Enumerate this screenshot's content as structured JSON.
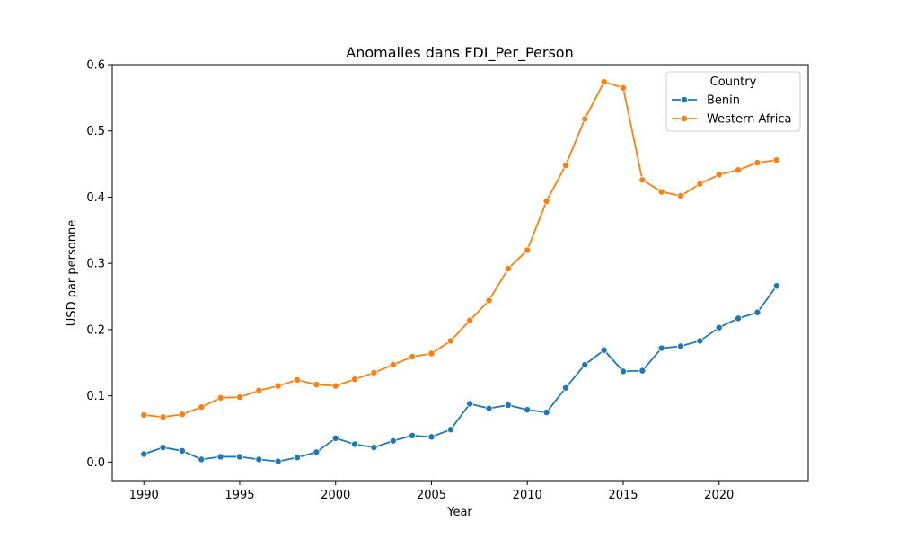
{
  "chart_data": {
    "type": "line",
    "title": "Anomalies dans FDI_Per_Person",
    "xlabel": "Year",
    "ylabel": "USD par personne",
    "xlim": [
      1988.35,
      2024.65
    ],
    "ylim": [
      -0.028,
      0.6
    ],
    "x_ticks": [
      1990,
      1995,
      2000,
      2005,
      2010,
      2015,
      2020
    ],
    "y_ticks": [
      0.0,
      0.1,
      0.2,
      0.3,
      0.4,
      0.5,
      0.6
    ],
    "y_tick_labels": [
      "0.0",
      "0.1",
      "0.2",
      "0.3",
      "0.4",
      "0.5",
      "0.6"
    ],
    "grid": false,
    "legend": {
      "title": "Country",
      "placement": "top-right"
    },
    "x": [
      1990,
      1991,
      1992,
      1993,
      1994,
      1995,
      1996,
      1997,
      1998,
      1999,
      2000,
      2001,
      2002,
      2003,
      2004,
      2005,
      2006,
      2007,
      2008,
      2009,
      2010,
      2011,
      2012,
      2013,
      2014,
      2015,
      2016,
      2017,
      2018,
      2019,
      2020,
      2021,
      2022,
      2023
    ],
    "series": [
      {
        "name": "Benin",
        "color": "#1f77b4",
        "marker": "circle",
        "values": [
          0.012,
          0.022,
          0.017,
          0.004,
          0.008,
          0.008,
          0.004,
          0.001,
          0.007,
          0.015,
          0.036,
          0.027,
          0.022,
          0.032,
          0.04,
          0.038,
          0.049,
          0.088,
          0.081,
          0.086,
          0.079,
          0.075,
          0.112,
          0.147,
          0.169,
          0.137,
          0.138,
          0.172,
          0.175,
          0.183,
          0.203,
          0.217,
          0.226,
          0.266
        ]
      },
      {
        "name": "Western Africa",
        "color": "#ff7f0e",
        "marker": "circle",
        "values": [
          0.071,
          0.068,
          0.072,
          0.083,
          0.097,
          0.098,
          0.108,
          0.115,
          0.124,
          0.117,
          0.115,
          0.125,
          0.135,
          0.147,
          0.159,
          0.164,
          0.183,
          0.214,
          0.244,
          0.292,
          0.32,
          0.394,
          0.448,
          0.518,
          0.574,
          0.565,
          0.426,
          0.408,
          0.402,
          0.42,
          0.434,
          0.441,
          0.452,
          0.456
        ]
      }
    ]
  }
}
